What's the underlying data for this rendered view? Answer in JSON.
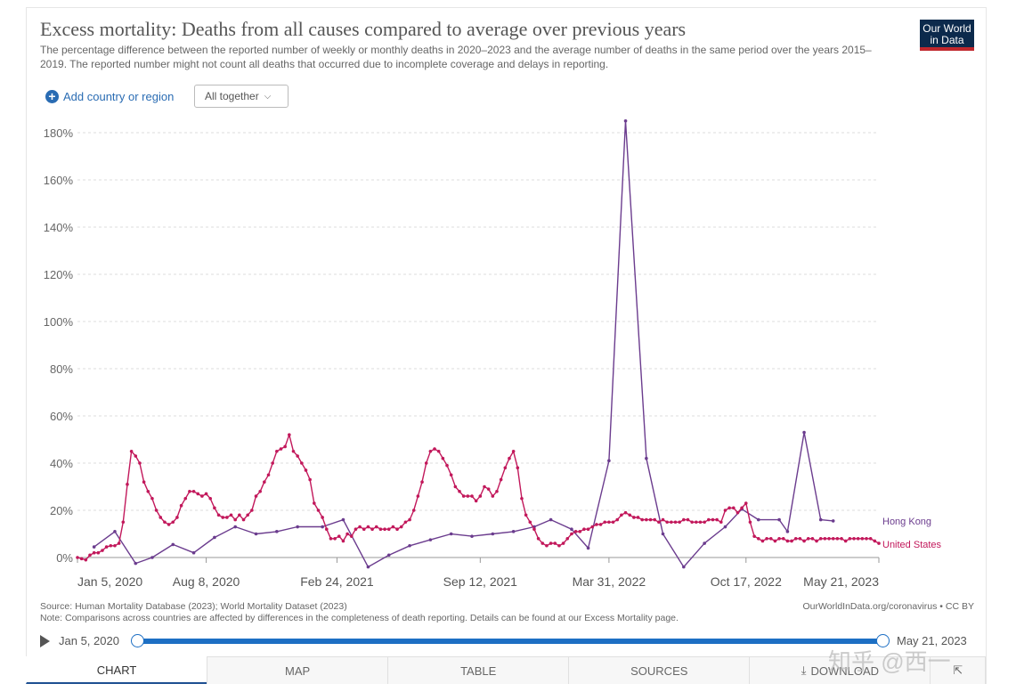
{
  "header": {
    "title": "Excess mortality: Deaths from all causes compared to average over previous years",
    "subtitle": "The percentage difference between the reported number of weekly or monthly deaths in 2020–2023 and the average number of deaths in the same period over the years 2015–2019. The reported number might not count all deaths that occurred due to incomplete coverage and delays in reporting.",
    "logo_line1": "Our World",
    "logo_line2": "in Data"
  },
  "controls": {
    "add_label": "Add country or region",
    "select_value": "All together"
  },
  "footer": {
    "source": "Source: Human Mortality Database (2023); World Mortality Dataset (2023)",
    "note": "Note: Comparisons across countries are affected by differences in the completeness of death reporting. Details can be found at our Excess Mortality page.",
    "attribution": "OurWorldInData.org/coronavirus • CC BY"
  },
  "timeline": {
    "start": "Jan 5, 2020",
    "end": "May 21, 2023"
  },
  "tabs": [
    "CHART",
    "MAP",
    "TABLE",
    "SOURCES",
    "DOWNLOAD",
    ""
  ],
  "watermark": "知乎 @西一",
  "colors": {
    "hong_kong": "#6b3c8e",
    "united_states": "#c2185b",
    "accent": "#1d6fc4"
  },
  "chart_data": {
    "type": "line",
    "title": "Excess mortality: Deaths from all causes compared to average over previous years",
    "ylim": [
      0,
      180
    ],
    "y_ticks": [
      "0%",
      "20%",
      "40%",
      "60%",
      "80%",
      "100%",
      "120%",
      "140%",
      "160%",
      "180%"
    ],
    "x_ticks": [
      "Jan 5, 2020",
      "Aug 8, 2020",
      "Feb 24, 2021",
      "Sep 12, 2021",
      "Mar 31, 2022",
      "Oct 17, 2022",
      "May 21, 2023"
    ],
    "x_tick_values": [
      0,
      31,
      62.5,
      97,
      128,
      161,
      193
    ],
    "xlim": [
      0,
      193
    ],
    "grid": true,
    "series": [
      {
        "name": "Hong Kong",
        "color": "#6b3c8e",
        "x": [
          4,
          9,
          14,
          18,
          23,
          28,
          33,
          38,
          43,
          48,
          53,
          59,
          64,
          70,
          75,
          80,
          85,
          90,
          95,
          100,
          105,
          110,
          114,
          119,
          123,
          128,
          132,
          137,
          141,
          146,
          151,
          156,
          160,
          164,
          169,
          171,
          175,
          179,
          182
        ],
        "y": [
          4.5,
          11,
          -2.5,
          0,
          5.5,
          2,
          8.5,
          13,
          10,
          11,
          13,
          13,
          16,
          -4,
          1,
          5,
          7.5,
          10,
          9,
          10,
          11,
          13,
          16,
          12,
          4,
          41,
          185,
          42,
          10,
          -4,
          6,
          13,
          20.5,
          16,
          16,
          11,
          53,
          16,
          15.5
        ]
      },
      {
        "name": "United States",
        "color": "#c2185b",
        "x": [
          0,
          1,
          2,
          3,
          4,
          5,
          6,
          7,
          8,
          9,
          10,
          11,
          12,
          13,
          14,
          15,
          16,
          17,
          18,
          19,
          20,
          21,
          22,
          23,
          24,
          25,
          26,
          27,
          28,
          29,
          30,
          31,
          32,
          33,
          34,
          35,
          36,
          37,
          38,
          39,
          40,
          41,
          42,
          43,
          44,
          45,
          46,
          47,
          48,
          49,
          50,
          51,
          52,
          53,
          54,
          55,
          56,
          57,
          58,
          59,
          60,
          61,
          62,
          63,
          64,
          65,
          66,
          67,
          68,
          69,
          70,
          71,
          72,
          73,
          74,
          75,
          76,
          77,
          78,
          79,
          80,
          81,
          82,
          83,
          84,
          85,
          86,
          87,
          88,
          89,
          90,
          91,
          92,
          93,
          94,
          95,
          96,
          97,
          98,
          99,
          100,
          101,
          102,
          103,
          104,
          105,
          106,
          107,
          108,
          109,
          110,
          111,
          112,
          113,
          114,
          115,
          116,
          117,
          118,
          119,
          120,
          121,
          122,
          123,
          124,
          125,
          126,
          127,
          128,
          129,
          130,
          131,
          132,
          133,
          134,
          135,
          136,
          137,
          138,
          139,
          140,
          141,
          142,
          143,
          144,
          145,
          146,
          147,
          148,
          149,
          150,
          151,
          152,
          153,
          154,
          155,
          156,
          157,
          158,
          159,
          160,
          161,
          162,
          163,
          164,
          165,
          166,
          167,
          168,
          169,
          170,
          171,
          172,
          173,
          174,
          175,
          176,
          177,
          178,
          179,
          180,
          181,
          182,
          183,
          184,
          185,
          186,
          187,
          188,
          189,
          190,
          191,
          192,
          193
        ],
        "y": [
          0,
          -0.5,
          -1,
          1,
          2,
          2,
          3,
          4.5,
          5,
          5,
          6,
          15,
          31,
          45,
          43,
          40,
          32,
          28,
          25,
          20,
          17,
          15,
          14,
          15,
          17,
          22,
          25,
          28,
          28,
          27,
          26,
          27,
          25,
          21,
          18,
          17,
          17,
          18,
          16,
          18,
          16,
          18,
          20,
          26,
          28,
          32,
          35,
          40,
          45,
          46,
          47,
          52,
          45,
          43,
          40,
          37,
          33,
          23,
          20,
          17,
          12,
          8,
          8,
          9,
          7,
          10,
          9,
          12,
          13,
          12,
          13,
          12,
          13,
          12,
          12,
          12,
          13,
          12,
          13,
          15,
          16,
          20,
          26,
          32,
          40,
          45,
          46,
          45,
          42,
          39,
          35,
          30,
          28,
          26,
          26,
          26,
          24,
          26,
          30,
          29,
          26,
          28,
          33,
          38,
          42,
          45,
          38,
          25,
          18,
          15,
          12,
          8,
          6,
          5,
          6,
          6,
          5,
          6,
          8,
          10,
          11,
          11,
          12,
          12,
          13,
          14,
          14,
          15,
          15,
          15,
          16,
          18,
          19,
          18,
          17,
          17,
          16,
          16,
          16,
          16,
          15,
          16,
          15,
          15,
          15,
          15,
          16,
          16,
          15,
          15,
          15,
          15,
          16,
          16,
          16,
          15,
          20,
          21,
          21,
          19,
          21,
          23,
          15,
          9,
          8,
          7,
          8,
          8,
          7,
          8,
          8,
          7,
          7,
          8,
          8,
          7,
          8,
          8,
          7,
          8,
          8,
          8,
          8,
          8,
          8,
          7,
          8,
          8,
          8,
          8,
          8,
          8,
          7,
          6
        ]
      }
    ]
  }
}
